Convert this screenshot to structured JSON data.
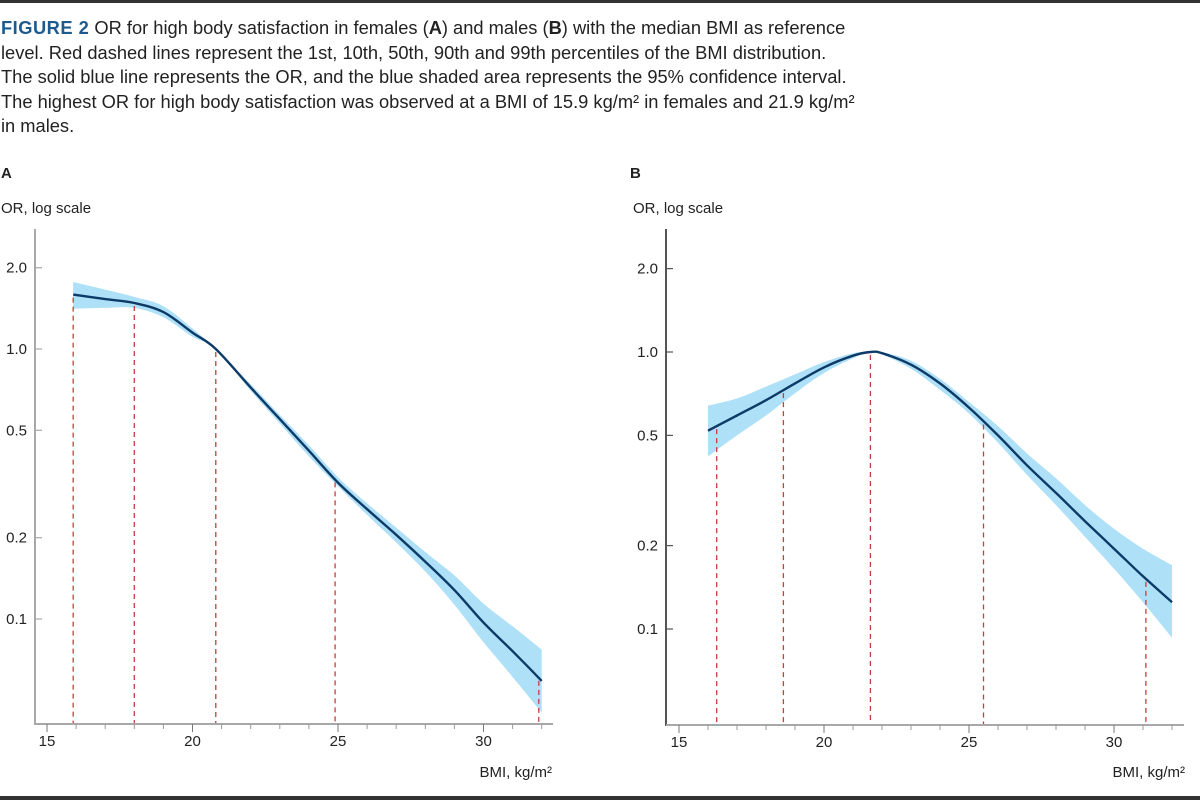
{
  "caption": {
    "figure_label": "FIGURE 2",
    "parts": [
      " OR for high body satisfaction in females (",
      "A",
      ") and males (",
      "B",
      ") with the median BMI as reference level. Red dashed lines represent the 1st, 10th, 50th, 90th and 99th percentiles of the BMI distribution. The solid blue line represents the OR, and the blue shaded area represents the 95% confidence interval. The highest OR for high body satisfaction was observed at a BMI of 15.9 kg/m² in females and 21.9 kg/m² in males."
    ]
  },
  "colors": {
    "line": "#0d3a66",
    "band": "#aee0f8",
    "percentile": "#c83c3c",
    "axis_a": "#a8a8a8",
    "axis_b": "#555555",
    "figure_label": "#1e5a8c"
  },
  "chart_data": [
    {
      "type": "line",
      "panel": "A",
      "title": "A",
      "ylabel": "OR, log scale",
      "xlabel": "BMI, kg/m²",
      "yscale": "log",
      "xlim": [
        14.8,
        32.3
      ],
      "ylim_log": [
        0.045,
        2.6
      ],
      "xticks": [
        15,
        20,
        25,
        30
      ],
      "xtick_labels": [
        "15",
        "20",
        "25",
        "30"
      ],
      "x_minor_step": 1,
      "yticks": [
        2.0,
        1.0,
        0.5,
        0.2,
        0.1
      ],
      "ytick_labels": [
        "2.0",
        "1.0",
        "0.5",
        "0.2",
        "0.1"
      ],
      "percentile_lines": [
        15.9,
        18.0,
        20.8,
        24.9,
        31.9
      ],
      "series": [
        {
          "name": "OR",
          "x": [
            15.9,
            17,
            18,
            19,
            20,
            20.8,
            22,
            23,
            24,
            25,
            26,
            27,
            28,
            29,
            30,
            31,
            32
          ],
          "y": [
            1.59,
            1.53,
            1.48,
            1.37,
            1.15,
            1.0,
            0.72,
            0.55,
            0.42,
            0.32,
            0.255,
            0.205,
            0.163,
            0.128,
            0.097,
            0.076,
            0.059
          ],
          "lower": [
            1.41,
            1.42,
            1.42,
            1.31,
            1.11,
            1.0,
            0.7,
            0.53,
            0.4,
            0.31,
            0.243,
            0.192,
            0.15,
            0.113,
            0.082,
            0.061,
            0.045
          ],
          "upper": [
            1.77,
            1.66,
            1.56,
            1.44,
            1.19,
            1.0,
            0.74,
            0.57,
            0.44,
            0.335,
            0.268,
            0.218,
            0.177,
            0.145,
            0.114,
            0.094,
            0.077
          ]
        }
      ]
    },
    {
      "type": "line",
      "panel": "B",
      "title": "B",
      "ylabel": "OR, log scale",
      "xlabel": "BMI, kg/m²",
      "yscale": "log",
      "xlim": [
        14.6,
        32.4
      ],
      "ylim_log": [
        0.045,
        2.6
      ],
      "xticks": [
        15,
        20,
        25,
        30
      ],
      "xtick_labels": [
        "15",
        "20",
        "25",
        "30"
      ],
      "x_minor_step": 1,
      "yticks": [
        2.0,
        1.0,
        0.5,
        0.2,
        0.1
      ],
      "ytick_labels": [
        "2.0",
        "1.0",
        "0.5",
        "0.2",
        "0.1"
      ],
      "percentile_lines": [
        16.3,
        18.6,
        21.6,
        25.5,
        31.1
      ],
      "series": [
        {
          "name": "OR",
          "x": [
            16,
            17,
            18,
            19,
            20,
            21,
            21.6,
            22,
            23,
            24,
            25,
            26,
            27,
            28,
            29,
            30,
            31,
            32
          ],
          "y": [
            0.52,
            0.59,
            0.67,
            0.77,
            0.88,
            0.97,
            1.0,
            0.99,
            0.9,
            0.77,
            0.63,
            0.5,
            0.39,
            0.31,
            0.245,
            0.195,
            0.155,
            0.125
          ],
          "lower": [
            0.42,
            0.5,
            0.59,
            0.71,
            0.84,
            0.95,
            1.0,
            0.98,
            0.87,
            0.73,
            0.6,
            0.47,
            0.36,
            0.28,
            0.215,
            0.165,
            0.125,
            0.093
          ],
          "upper": [
            0.64,
            0.68,
            0.75,
            0.83,
            0.92,
            0.99,
            1.0,
            1.0,
            0.93,
            0.8,
            0.66,
            0.54,
            0.43,
            0.35,
            0.28,
            0.23,
            0.195,
            0.17
          ]
        }
      ]
    }
  ]
}
